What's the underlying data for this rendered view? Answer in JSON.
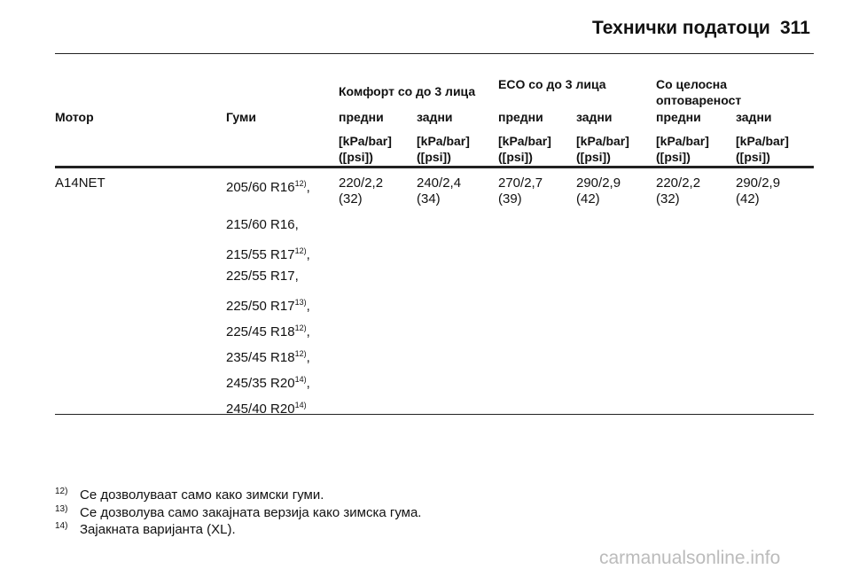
{
  "header": {
    "title": "Технички податоци",
    "page": "311"
  },
  "table": {
    "groups": [
      "Комфорт со до 3 лица",
      "ECO со до 3 лица",
      "Со целосна оптовареност"
    ],
    "columns": [
      "Мотор",
      "Гуми",
      "предни",
      "задни",
      "предни",
      "задни",
      "предни",
      "задни"
    ],
    "units": [
      "[kPa/bar] ([psi])",
      "[kPa/bar] ([psi])",
      "[kPa/bar] ([psi])",
      "[kPa/bar] ([psi])",
      "[kPa/bar] ([psi])",
      "[kPa/bar] ([psi])"
    ],
    "rows": [
      {
        "engine": "A14NET",
        "tyres": [
          {
            "text": "205/60 R16",
            "note": "12)",
            "suffix": ","
          },
          {
            "text": "215/60 R16,"
          },
          {
            "text": "215/55 R17",
            "note": "12)",
            "suffix": ","
          },
          {
            "text": "225/55 R17,"
          },
          {
            "text": "225/50 R17",
            "note": "13)",
            "suffix": ","
          },
          {
            "text": "225/45 R18",
            "note": "12)",
            "suffix": ","
          },
          {
            "text": "235/45 R18",
            "note": "12)",
            "suffix": ","
          },
          {
            "text": "245/35 R20",
            "note": "14)",
            "suffix": ","
          },
          {
            "text": "245/40 R20",
            "note": "14)"
          }
        ],
        "pressures": [
          "220/2,2 (32)",
          "240/2,4 (34)",
          "270/2,7 (39)",
          "290/2,9 (42)",
          "220/2,2 (32)",
          "290/2,9 (42)"
        ]
      }
    ]
  },
  "footnotes": [
    {
      "mark": "12)",
      "text": "Се дозволуваат само како зимски гуми."
    },
    {
      "mark": "13)",
      "text": "Се дозволува само закајната верзија како зимска гума."
    },
    {
      "mark": "14)",
      "text": "Зајакната варијанта (XL)."
    }
  ],
  "watermark": "carmanualsonline.info"
}
